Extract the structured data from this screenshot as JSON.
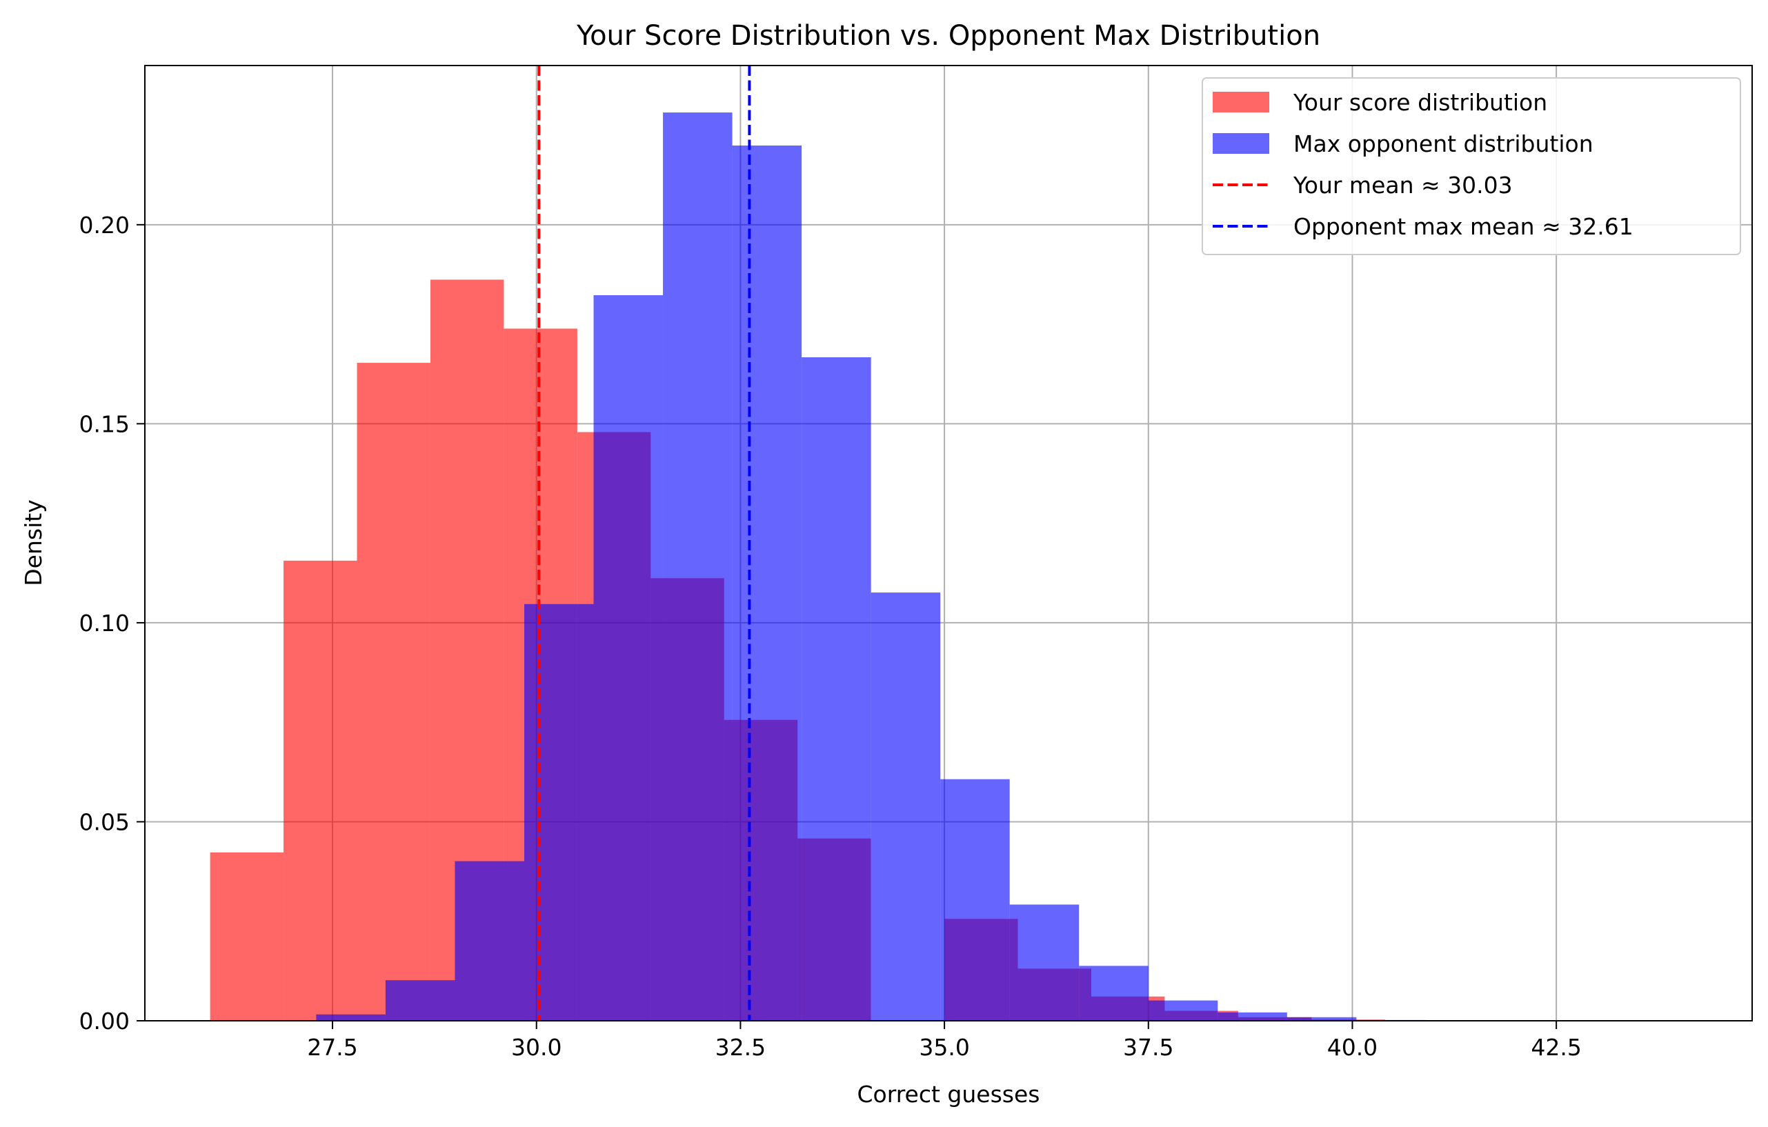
{
  "chart_data": {
    "type": "bar",
    "title": "Your Score Distribution vs. Opponent Max Distribution",
    "xlabel": "Correct guesses",
    "ylabel": "Density",
    "xlim": [
      25.2,
      44.9
    ],
    "ylim": [
      0,
      0.24
    ],
    "grid": true,
    "legend_position": "top-right",
    "x_ticks": [
      27.5,
      30.0,
      32.5,
      35.0,
      37.5,
      40.0,
      42.5
    ],
    "x_tick_labels": [
      "27.5",
      "30.0",
      "32.5",
      "35.0",
      "37.5",
      "40.0",
      "42.5"
    ],
    "y_ticks": [
      0.0,
      0.05,
      0.1,
      0.15,
      0.2
    ],
    "y_tick_labels": [
      "0.00",
      "0.05",
      "0.10",
      "0.15",
      "0.20"
    ],
    "series": [
      {
        "name": "Your score distribution",
        "color": "#ff0000",
        "opacity": 0.6,
        "bins": [
          {
            "x0": 26.0,
            "x1": 26.9,
            "y": 0.0423
          },
          {
            "x0": 26.9,
            "x1": 27.8,
            "y": 0.1156
          },
          {
            "x0": 27.8,
            "x1": 28.7,
            "y": 0.1653
          },
          {
            "x0": 28.7,
            "x1": 29.6,
            "y": 0.1862
          },
          {
            "x0": 29.6,
            "x1": 30.5,
            "y": 0.1739
          },
          {
            "x0": 30.5,
            "x1": 31.4,
            "y": 0.1479
          },
          {
            "x0": 31.4,
            "x1": 32.3,
            "y": 0.1112
          },
          {
            "x0": 32.3,
            "x1": 33.2,
            "y": 0.0756
          },
          {
            "x0": 33.2,
            "x1": 34.1,
            "y": 0.0458
          },
          {
            "x0": 34.1,
            "x1": 35.0,
            "y": 0.0
          },
          {
            "x0": 35.0,
            "x1": 35.9,
            "y": 0.0256
          },
          {
            "x0": 35.9,
            "x1": 36.8,
            "y": 0.0131
          },
          {
            "x0": 36.8,
            "x1": 37.7,
            "y": 0.0061
          },
          {
            "x0": 37.7,
            "x1": 38.6,
            "y": 0.0025
          },
          {
            "x0": 38.6,
            "x1": 39.5,
            "y": 0.0009
          },
          {
            "x0": 39.5,
            "x1": 40.4,
            "y": 0.0003
          }
        ]
      },
      {
        "name": "Max opponent distribution",
        "color": "#0000ff",
        "opacity": 0.6,
        "bins": [
          {
            "x0": 27.3,
            "x1": 28.15,
            "y": 0.0016
          },
          {
            "x0": 28.15,
            "x1": 29.0,
            "y": 0.0102
          },
          {
            "x0": 29.0,
            "x1": 29.85,
            "y": 0.0401
          },
          {
            "x0": 29.85,
            "x1": 30.7,
            "y": 0.1047
          },
          {
            "x0": 30.7,
            "x1": 31.55,
            "y": 0.1823
          },
          {
            "x0": 31.55,
            "x1": 32.4,
            "y": 0.2282
          },
          {
            "x0": 32.4,
            "x1": 33.25,
            "y": 0.2199
          },
          {
            "x0": 33.25,
            "x1": 34.1,
            "y": 0.1667
          },
          {
            "x0": 34.1,
            "x1": 34.95,
            "y": 0.1076
          },
          {
            "x0": 34.95,
            "x1": 35.8,
            "y": 0.0607
          },
          {
            "x0": 35.8,
            "x1": 36.65,
            "y": 0.0292
          },
          {
            "x0": 36.65,
            "x1": 37.5,
            "y": 0.0138
          },
          {
            "x0": 37.5,
            "x1": 38.35,
            "y": 0.0051
          },
          {
            "x0": 38.35,
            "x1": 39.2,
            "y": 0.0021
          },
          {
            "x0": 39.2,
            "x1": 40.05,
            "y": 0.0009
          },
          {
            "x0": 40.05,
            "x1": 40.9,
            "y": 0.0002
          }
        ]
      }
    ],
    "vlines": [
      {
        "name": "Your mean ≈ 30.03",
        "x": 30.03,
        "color": "#ff0000",
        "style": "dashed"
      },
      {
        "name": "Opponent max mean ≈ 32.61",
        "x": 32.61,
        "color": "#0000ff",
        "style": "dashed"
      }
    ]
  }
}
